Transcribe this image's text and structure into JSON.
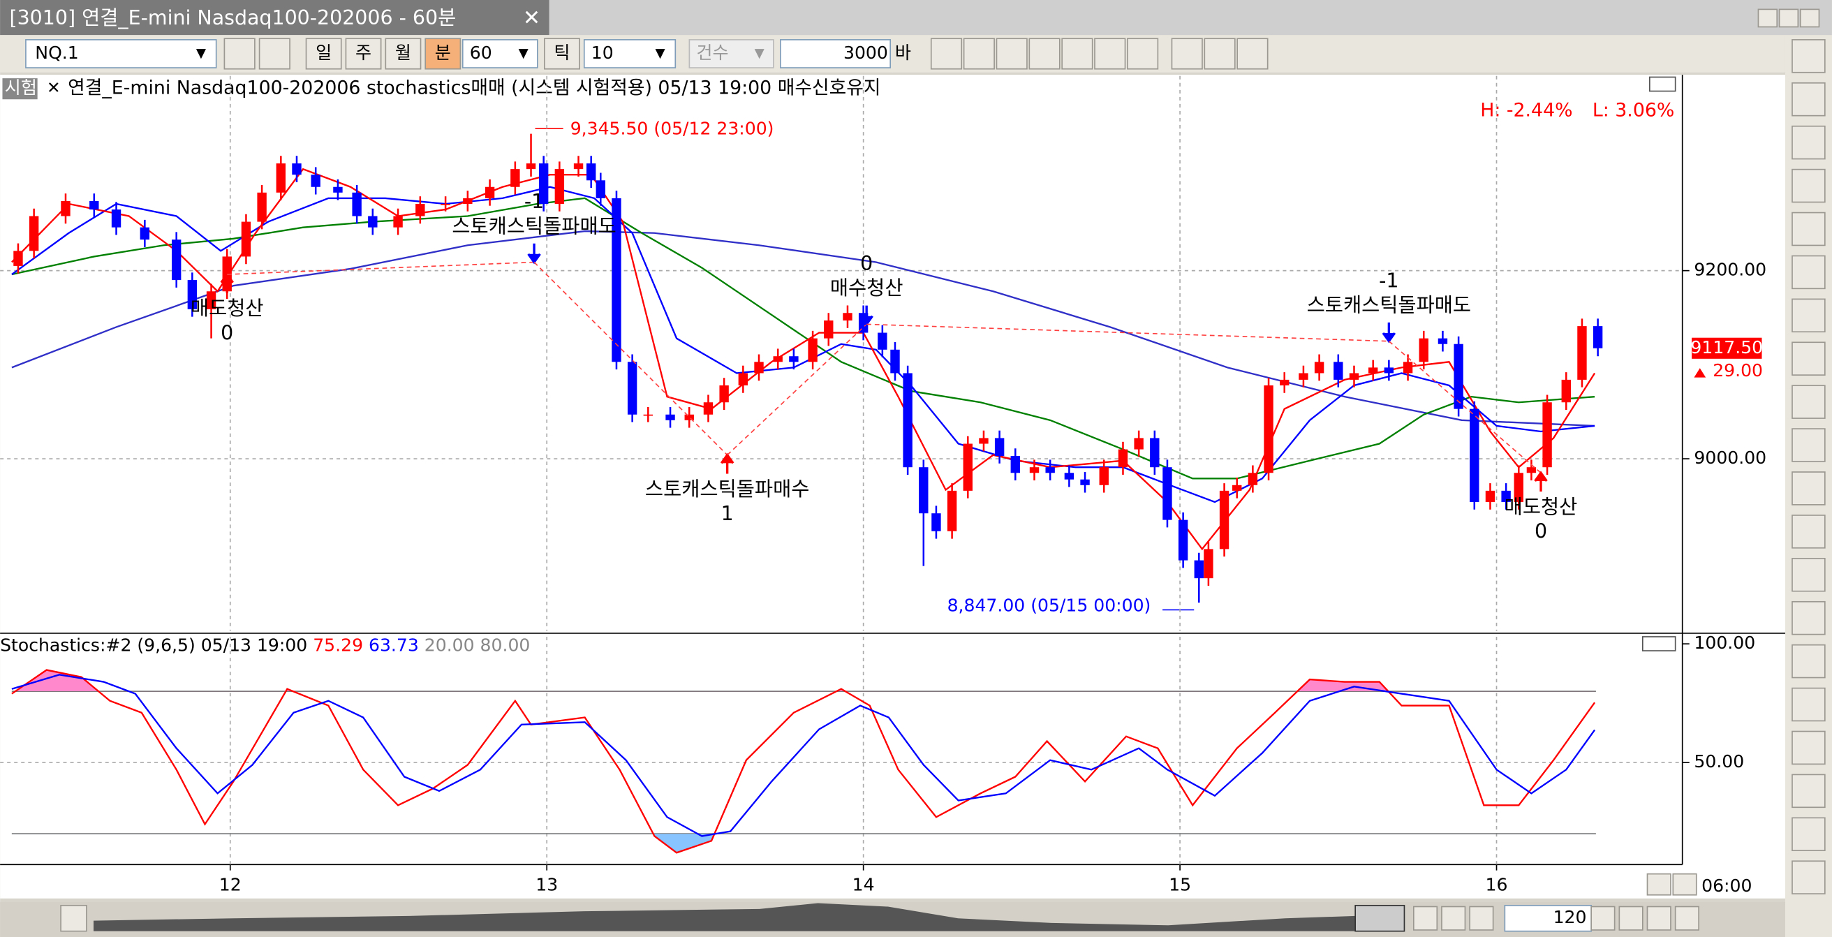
{
  "window": {
    "title": "[3010] 연결_E-mini Nasdaq100-202006 - 60분"
  },
  "toolbar": {
    "symbol": "NQ.1",
    "periods": [
      "일",
      "주",
      "월",
      "분"
    ],
    "active_period": 3,
    "interval": "60",
    "tick_label": "틱",
    "tick_value": "10",
    "count_label": "건수",
    "count": "3000",
    "bar_label": "바"
  },
  "chart_data": [
    {
      "type": "candlestick",
      "tag": "시험",
      "title": "연결_E-mini Nasdaq100-202006 stochastics매매 (시스템 시험적용) 05/13 19:00 매수신호유지",
      "high_change": "H: -2.44%",
      "low_change": "L: 3.06%",
      "annotations": [
        {
          "text": "9,345.50 (05/12 23:00)",
          "color": "#ff0000"
        },
        {
          "text": "8,847.00 (05/15 00:00)",
          "color": "#0000ff"
        }
      ],
      "up_color": "#ff0000",
      "down_color": "#0000ff",
      "xlim": [
        11.273,
        16.587
      ],
      "xticks": [
        12,
        13,
        14,
        15,
        16
      ],
      "ylim": [
        8817,
        9407
      ],
      "yticks": [
        {
          "value": 9200,
          "label": "9200.00"
        },
        {
          "value": 9000,
          "label": "9000.00"
        }
      ],
      "last_label": "9117.50",
      "change_label": "29.00",
      "x": [
        11.33,
        11.38,
        11.48,
        11.57,
        11.64,
        11.73,
        11.83,
        11.88,
        11.94,
        11.99,
        12.05,
        12.1,
        12.16,
        12.21,
        12.27,
        12.34,
        12.4,
        12.45,
        12.53,
        12.6,
        12.68,
        12.75,
        12.82,
        12.9,
        12.95,
        12.99,
        13.04,
        13.1,
        13.14,
        13.17,
        13.22,
        13.27,
        13.32,
        13.39,
        13.45,
        13.51,
        13.56,
        13.62,
        13.67,
        13.73,
        13.78,
        13.84,
        13.89,
        13.95,
        14.0,
        14.06,
        14.1,
        14.14,
        14.19,
        14.23,
        14.28,
        14.33,
        14.38,
        14.43,
        14.48,
        14.54,
        14.59,
        14.65,
        14.7,
        14.76,
        14.82,
        14.87,
        14.92,
        14.96,
        15.01,
        15.06,
        15.09,
        15.14,
        15.18,
        15.23,
        15.28,
        15.33,
        15.39,
        15.44,
        15.5,
        15.55,
        15.61,
        15.66,
        15.72,
        15.77,
        15.83,
        15.88,
        15.93,
        15.98,
        16.03,
        16.07,
        16.11,
        16.16,
        16.22,
        16.27,
        16.32
      ],
      "open": [
        9205,
        9221,
        9258,
        9274,
        9265,
        9246,
        9233,
        9190,
        9159,
        9178,
        9215,
        9252,
        9283,
        9314,
        9302,
        9289,
        9283,
        9258,
        9246,
        9258,
        9271,
        9271,
        9277,
        9289,
        9308,
        9314,
        9271,
        9308,
        9314,
        9296,
        9277,
        9103,
        9047,
        9047,
        9041,
        9047,
        9060,
        9078,
        9091,
        9103,
        9109,
        9103,
        9128,
        9147,
        9155,
        9134,
        9116,
        9091,
        8991,
        8942,
        8923,
        8966,
        9016,
        9022,
        9003,
        8985,
        8991,
        8985,
        8978,
        8972,
        8991,
        9010,
        9022,
        8991,
        8935,
        8892,
        8873,
        8904,
        8966,
        8972,
        8985,
        9078,
        9084,
        9091,
        9103,
        9084,
        9091,
        9097,
        9091,
        9103,
        9128,
        9122,
        9053,
        8954,
        8966,
        8954,
        8985,
        8991,
        9060,
        9084,
        9141
      ],
      "high": [
        9229,
        9266,
        9282,
        9282,
        9273,
        9254,
        9241,
        9198,
        9186,
        9223,
        9260,
        9291,
        9322,
        9322,
        9310,
        9297,
        9291,
        9266,
        9266,
        9279,
        9279,
        9285,
        9297,
        9316,
        9345.5,
        9322,
        9316,
        9322,
        9322,
        9304,
        9285,
        9111,
        9055,
        9055,
        9055,
        9068,
        9086,
        9099,
        9111,
        9117,
        9117,
        9136,
        9155,
        9163,
        9163,
        9142,
        9124,
        9099,
        8999,
        8950,
        8974,
        9024,
        9030,
        9030,
        9011,
        8999,
        8999,
        8993,
        8986,
        8999,
        9018,
        9030,
        9030,
        8999,
        8943,
        8900,
        8912,
        8974,
        8980,
        8993,
        9086,
        9092,
        9099,
        9111,
        9111,
        9099,
        9105,
        9105,
        9111,
        9136,
        9136,
        9130,
        9061,
        8974,
        8974,
        8993,
        8999,
        9068,
        9092,
        9149,
        9149
      ],
      "low": [
        9197,
        9213,
        9250,
        9257,
        9238,
        9225,
        9182,
        9151,
        9128,
        9170,
        9207,
        9244,
        9275,
        9294,
        9281,
        9275,
        9250,
        9238,
        9238,
        9250,
        9263,
        9263,
        9269,
        9281,
        9300,
        9263,
        9263,
        9300,
        9288,
        9269,
        9095,
        9039,
        9039,
        9033,
        9033,
        9039,
        9052,
        9070,
        9083,
        9095,
        9095,
        9095,
        9120,
        9139,
        9126,
        9108,
        9083,
        8983,
        8886,
        8915,
        8915,
        8958,
        9008,
        8995,
        8977,
        8977,
        8977,
        8970,
        8964,
        8964,
        8983,
        9002,
        8983,
        8927,
        8884,
        8847,
        8865,
        8896,
        8958,
        8964,
        8977,
        9070,
        9076,
        9083,
        9076,
        9076,
        9083,
        9083,
        9083,
        9095,
        9114,
        9045,
        8946,
        8946,
        8946,
        8946,
        8977,
        8983,
        9052,
        9076,
        9109
      ],
      "close": [
        9221,
        9258,
        9274,
        9265,
        9246,
        9233,
        9190,
        9159,
        9178,
        9215,
        9252,
        9283,
        9314,
        9302,
        9289,
        9283,
        9258,
        9246,
        9258,
        9271,
        9271,
        9277,
        9289,
        9308,
        9314,
        9271,
        9308,
        9314,
        9296,
        9277,
        9103,
        9047,
        9047,
        9041,
        9047,
        9060,
        9078,
        9091,
        9103,
        9109,
        9103,
        9128,
        9147,
        9155,
        9134,
        9116,
        9091,
        8991,
        8942,
        8923,
        8966,
        9016,
        9022,
        9003,
        8985,
        8991,
        8985,
        8978,
        8972,
        8991,
        9010,
        9022,
        8991,
        8935,
        8892,
        8873,
        8904,
        8966,
        8972,
        8985,
        9078,
        9084,
        9091,
        9103,
        9084,
        9091,
        9097,
        9091,
        9103,
        9128,
        9122,
        9053,
        8954,
        8966,
        8954,
        8985,
        8991,
        9060,
        9084,
        9141,
        9117.5
      ],
      "series": [
        {
          "color": "#3030c8",
          "x": [
            11.31,
            11.64,
            12.01,
            12.38,
            12.75,
            13.12,
            13.34,
            13.67,
            14.04,
            14.41,
            14.78,
            15.15,
            15.52,
            15.89,
            16.31
          ],
          "values": [
            9097,
            9140,
            9184,
            9202,
            9227,
            9242,
            9240,
            9227,
            9209,
            9178,
            9140,
            9097,
            9066,
            9041,
            9035
          ]
        },
        {
          "color": "#008000",
          "x": [
            11.31,
            11.57,
            11.79,
            12.01,
            12.23,
            12.45,
            12.75,
            12.97,
            13.12,
            13.3,
            13.49,
            13.71,
            13.93,
            14.15,
            14.37,
            14.59,
            14.82,
            15.04,
            15.18,
            15.41,
            15.63,
            15.77,
            15.92,
            16.07,
            16.31
          ],
          "values": [
            9196,
            9215,
            9227,
            9234,
            9246,
            9252,
            9258,
            9271,
            9277,
            9240,
            9203,
            9153,
            9103,
            9072,
            9060,
            9041,
            9010,
            8979,
            8979,
            8998,
            9016,
            9047,
            9066,
            9060,
            9066
          ]
        },
        {
          "color": "#0000ff",
          "x": [
            11.31,
            11.49,
            11.64,
            11.83,
            11.97,
            12.12,
            12.31,
            12.49,
            12.68,
            12.86,
            13.01,
            13.15,
            13.27,
            13.41,
            13.6,
            13.78,
            13.93,
            14.04,
            14.15,
            14.3,
            14.48,
            14.67,
            14.82,
            14.96,
            15.11,
            15.26,
            15.41,
            15.55,
            15.7,
            15.85,
            16.0,
            16.14,
            16.31
          ],
          "values": [
            9196,
            9240,
            9271,
            9258,
            9221,
            9252,
            9277,
            9277,
            9271,
            9277,
            9289,
            9277,
            9240,
            9128,
            9091,
            9097,
            9122,
            9116,
            9078,
            9016,
            8998,
            8991,
            8991,
            8973,
            8954,
            8979,
            9041,
            9078,
            9091,
            9078,
            9035,
            9029,
            9035
          ]
        },
        {
          "color": "#ff0000",
          "x": [
            11.31,
            11.49,
            11.68,
            11.83,
            11.96,
            12.08,
            12.23,
            12.38,
            12.53,
            12.68,
            12.86,
            13.01,
            13.14,
            13.24,
            13.38,
            13.52,
            13.71,
            13.86,
            14.0,
            14.11,
            14.26,
            14.41,
            14.59,
            14.82,
            14.96,
            15.07,
            15.22,
            15.33,
            15.52,
            15.7,
            15.85,
            15.98,
            16.07,
            16.18,
            16.31
          ],
          "values": [
            9209,
            9271,
            9258,
            9221,
            9178,
            9240,
            9308,
            9289,
            9258,
            9265,
            9289,
            9302,
            9302,
            9252,
            9066,
            9053,
            9103,
            9134,
            9134,
            9066,
            8967,
            9004,
            8991,
            8998,
            8954,
            8904,
            8967,
            9053,
            9084,
            9097,
            9103,
            9029,
            8991,
            9022,
            9091
          ]
        }
      ],
      "signals": [
        {
          "label": "매도청산",
          "position": 0,
          "x": 11.99,
          "y": 9196,
          "arrow": "up",
          "color": "#ff0000"
        },
        {
          "label": "스토캐스틱돌파매도",
          "position": -1,
          "x": 12.96,
          "y": 9209,
          "arrow": "down",
          "color": "#0000ff"
        },
        {
          "label": "스토캐스틱돌파매수",
          "position": 1,
          "x": 13.57,
          "y": 9004,
          "arrow": "up",
          "color": "#ff0000"
        },
        {
          "label": "매수청산",
          "position": 0,
          "x": 14.01,
          "y": 9143,
          "arrow": "down",
          "color": "#0000ff"
        },
        {
          "label": "스토캐스틱돌파매도",
          "position": -1,
          "x": 15.66,
          "y": 9125,
          "arrow": "down",
          "color": "#0000ff"
        },
        {
          "label": "매도청산",
          "position": 0,
          "x": 16.14,
          "y": 8985,
          "arrow": "up",
          "color": "#ff0000"
        }
      ]
    },
    {
      "type": "line",
      "title": "Stochastics:#2  (9,6,5) 05/13 19:00",
      "reference_label": "20.00 80.00",
      "xlim": [
        11.273,
        16.587
      ],
      "xticks": [
        12,
        13,
        14,
        15,
        16
      ],
      "ylim": [
        7,
        103
      ],
      "yticks": [
        {
          "value": 100,
          "label": "100.00"
        },
        {
          "value": 50,
          "label": "50.00"
        }
      ],
      "reference_lines": [
        20,
        80
      ],
      "overbought_color": "#ff88cc",
      "oversold_color": "#88c4ff",
      "series": [
        {
          "color": "#ff0000",
          "last_label": "75.29",
          "x": [
            11.31,
            11.42,
            11.53,
            11.62,
            11.72,
            11.83,
            11.92,
            12.01,
            12.18,
            12.31,
            12.42,
            12.53,
            12.64,
            12.75,
            12.9,
            12.95,
            13.12,
            13.23,
            13.34,
            13.41,
            13.52,
            13.63,
            13.78,
            13.93,
            14.02,
            14.11,
            14.23,
            14.37,
            14.48,
            14.58,
            14.7,
            14.83,
            14.93,
            15.04,
            15.18,
            15.3,
            15.41,
            15.52,
            15.63,
            15.7,
            15.85,
            15.96,
            16.07,
            16.18,
            16.31
          ],
          "values": [
            79,
            89,
            86,
            76,
            71,
            47,
            24,
            42,
            81,
            74,
            47,
            32,
            39,
            49,
            76,
            66,
            69,
            47,
            19,
            12,
            17,
            51,
            71,
            81,
            74,
            47,
            27,
            37,
            44,
            59,
            42,
            61,
            56,
            32,
            56,
            71,
            85,
            84,
            84,
            74,
            74,
            32,
            32,
            51,
            75.29
          ]
        },
        {
          "color": "#0000ff",
          "last_label": "63.73",
          "x": [
            11.31,
            11.46,
            11.6,
            11.7,
            11.83,
            11.96,
            12.07,
            12.2,
            12.31,
            12.42,
            12.55,
            12.66,
            12.79,
            12.92,
            13.12,
            13.25,
            13.38,
            13.49,
            13.58,
            13.71,
            13.86,
            13.99,
            14.08,
            14.19,
            14.3,
            14.45,
            14.59,
            14.72,
            14.87,
            14.96,
            15.11,
            15.26,
            15.41,
            15.55,
            15.7,
            15.85,
            16.0,
            16.11,
            16.22,
            16.31
          ],
          "values": [
            81,
            87,
            84,
            79,
            56,
            37,
            49,
            71,
            76,
            69,
            44,
            38,
            47,
            66,
            67,
            51,
            27,
            19,
            21,
            42,
            64,
            74,
            69,
            49,
            34,
            37,
            51,
            47,
            56,
            47,
            36,
            54,
            76,
            82,
            79,
            76,
            47,
            37,
            47,
            63.73
          ]
        }
      ]
    }
  ],
  "footer": {
    "time_label": "06:00",
    "zoom": "120"
  }
}
